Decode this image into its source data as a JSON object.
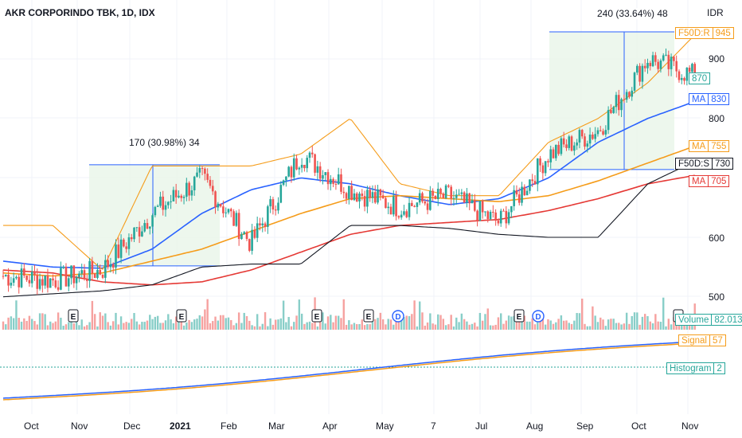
{
  "header": {
    "title": "AKR CORPORINDO TBK, 1D, IDX",
    "currency": "IDR"
  },
  "axes": {
    "price_ticks": [
      "900",
      "800",
      "600",
      "500"
    ],
    "time_labels": [
      "Oct",
      "Nov",
      "Dec",
      "2021",
      "Feb",
      "Mar",
      "Apr",
      "May",
      "7",
      "Jul",
      "Aug",
      "Sep",
      "Oct",
      "Nov"
    ]
  },
  "price_tags": [
    {
      "id": "f50d-r",
      "name": "F50D:R",
      "value": "945",
      "color": "#f59c1a"
    },
    {
      "id": "price",
      "name": "",
      "value": "870",
      "color": "#26a69a"
    },
    {
      "id": "ma-blue",
      "name": "MA",
      "value": "830",
      "color": "#2962ff"
    },
    {
      "id": "ma-orange",
      "name": "MA",
      "value": "755",
      "color": "#f59c1a"
    },
    {
      "id": "f50d-s",
      "name": "F50D:S",
      "value": "730",
      "color": "#131722"
    },
    {
      "id": "ma-red",
      "name": "MA",
      "value": "705",
      "color": "#e53935"
    }
  ],
  "lower_tags": [
    {
      "id": "volume",
      "name": "Volume",
      "value": "82.013M",
      "color": "#26a69a"
    },
    {
      "id": "signal",
      "name": "Signal",
      "value": "57",
      "color": "#f59c1a"
    },
    {
      "id": "histogram",
      "name": "Histogram",
      "value": "2",
      "color": "#26a69a"
    }
  ],
  "measures": [
    {
      "label": "170 (30.98%) 34",
      "x0": "Nov 3 2020",
      "x1": "Jan 26 2021",
      "y0": 552,
      "y1": 722
    },
    {
      "label": "240 (33.64%) 48",
      "x0": "Aug 2 2021",
      "x1": "Oct 27 2021",
      "y0": 714,
      "y1": 954
    }
  ],
  "events": [
    {
      "type": "E",
      "at": "Nov 2020"
    },
    {
      "type": "E",
      "at": "Jan 2021"
    },
    {
      "type": "E",
      "at": "Mar 2021"
    },
    {
      "type": "E",
      "at": "Apr 2021"
    },
    {
      "type": "D",
      "at": "May 2021"
    },
    {
      "type": "E",
      "at": "Jul 2021"
    },
    {
      "type": "D",
      "at": "Jul 2021"
    },
    {
      "type": "E",
      "at": "Oct 2021"
    }
  ],
  "colors": {
    "up": "#26a69a",
    "down": "#ef5350",
    "ma_fast": "#2962ff",
    "ma_mid": "#f59c1a",
    "ma_slow": "#e53935",
    "channel_low": "#131722",
    "range_fill": "#e8f5e9",
    "range_line": "#2962ff"
  },
  "chart_data": {
    "type": "candlestick",
    "title": "AKR CORPORINDO TBK, 1D, IDX",
    "y_unit": "IDR",
    "ylim": [
      500,
      960
    ],
    "x": [
      "2020-09",
      "2020-10",
      "2020-11",
      "2020-12",
      "2021-01",
      "2021-02",
      "2021-03",
      "2021-04",
      "2021-05",
      "2021-06",
      "2021-07",
      "2021-08",
      "2021-09",
      "2021-10",
      "2021-11"
    ],
    "series": [
      {
        "name": "MA",
        "values": [
          560,
          550,
          548,
          580,
          640,
          680,
          700,
          690,
          670,
          655,
          665,
          700,
          760,
          800,
          830
        ]
      },
      {
        "name": "MA",
        "values": [
          540,
          535,
          540,
          560,
          580,
          610,
          640,
          665,
          670,
          665,
          660,
          670,
          695,
          725,
          755
        ]
      },
      {
        "name": "MA",
        "values": [
          545,
          540,
          525,
          520,
          525,
          545,
          575,
          605,
          620,
          625,
          630,
          645,
          665,
          690,
          705
        ]
      }
    ],
    "close_points": [
      535,
      528,
      545,
      640,
      700,
      590,
      740,
      680,
      650,
      670,
      625,
      740,
      780,
      900,
      870
    ],
    "grid": true,
    "indicators": [
      "Volume 82.013M",
      "Signal 57",
      "Histogram 2"
    ]
  }
}
